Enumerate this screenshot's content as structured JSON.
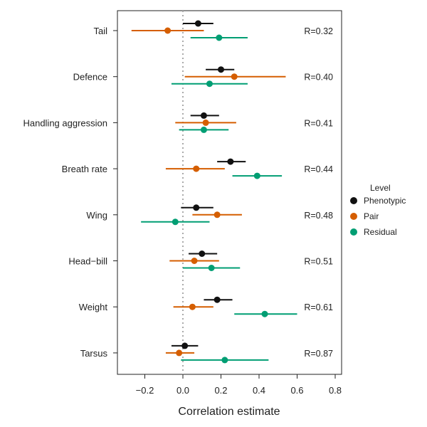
{
  "chart_data": {
    "type": "forest-plot",
    "xlabel": "Correlation estimate",
    "xlim": [
      -0.35,
      0.8
    ],
    "xticks": [
      -0.2,
      0.0,
      0.2,
      0.4,
      0.6,
      0.8
    ],
    "xtick_labels": [
      "−0.2",
      "0.0",
      "0.2",
      "0.4",
      "0.6",
      "0.8"
    ],
    "reference_line": 0,
    "legend": {
      "title": "Level",
      "placement": "right",
      "entries": [
        {
          "name": "Phenotypic",
          "color": "#111111"
        },
        {
          "name": "Pair",
          "color": "#d55e00"
        },
        {
          "name": "Residual",
          "color": "#009e73"
        }
      ]
    },
    "traits": [
      {
        "name": "Tail",
        "r_label": "R=0.32",
        "phenotypic": {
          "est": 0.08,
          "lo": 0.0,
          "hi": 0.16
        },
        "pair": {
          "est": -0.08,
          "lo": -0.27,
          "hi": 0.11
        },
        "residual": {
          "est": 0.19,
          "lo": 0.04,
          "hi": 0.34
        }
      },
      {
        "name": "Defence",
        "r_label": "R=0.40",
        "phenotypic": {
          "est": 0.2,
          "lo": 0.12,
          "hi": 0.27
        },
        "pair": {
          "est": 0.27,
          "lo": 0.01,
          "hi": 0.54
        },
        "residual": {
          "est": 0.14,
          "lo": -0.06,
          "hi": 0.34
        }
      },
      {
        "name": "Handling aggression",
        "r_label": "R=0.41",
        "phenotypic": {
          "est": 0.11,
          "lo": 0.04,
          "hi": 0.19
        },
        "pair": {
          "est": 0.12,
          "lo": -0.04,
          "hi": 0.28
        },
        "residual": {
          "est": 0.11,
          "lo": -0.02,
          "hi": 0.24
        }
      },
      {
        "name": "Breath rate",
        "r_label": "R=0.44",
        "phenotypic": {
          "est": 0.25,
          "lo": 0.18,
          "hi": 0.33
        },
        "pair": {
          "est": 0.07,
          "lo": -0.09,
          "hi": 0.22
        },
        "residual": {
          "est": 0.39,
          "lo": 0.26,
          "hi": 0.52
        }
      },
      {
        "name": "Wing",
        "r_label": "R=0.48",
        "phenotypic": {
          "est": 0.07,
          "lo": -0.01,
          "hi": 0.16
        },
        "pair": {
          "est": 0.18,
          "lo": 0.05,
          "hi": 0.31
        },
        "residual": {
          "est": -0.04,
          "lo": -0.22,
          "hi": 0.14
        }
      },
      {
        "name": "Head−bill",
        "r_label": "R=0.51",
        "phenotypic": {
          "est": 0.1,
          "lo": 0.03,
          "hi": 0.18
        },
        "pair": {
          "est": 0.06,
          "lo": -0.07,
          "hi": 0.19
        },
        "residual": {
          "est": 0.15,
          "lo": 0.0,
          "hi": 0.3
        }
      },
      {
        "name": "Weight",
        "r_label": "R=0.61",
        "phenotypic": {
          "est": 0.18,
          "lo": 0.11,
          "hi": 0.26
        },
        "pair": {
          "est": 0.05,
          "lo": -0.05,
          "hi": 0.16
        },
        "residual": {
          "est": 0.43,
          "lo": 0.27,
          "hi": 0.6
        }
      },
      {
        "name": "Tarsus",
        "r_label": "R=0.87",
        "phenotypic": {
          "est": 0.01,
          "lo": -0.06,
          "hi": 0.08
        },
        "pair": {
          "est": -0.02,
          "lo": -0.09,
          "hi": 0.06
        },
        "residual": {
          "est": 0.22,
          "lo": -0.01,
          "hi": 0.45
        }
      }
    ]
  }
}
